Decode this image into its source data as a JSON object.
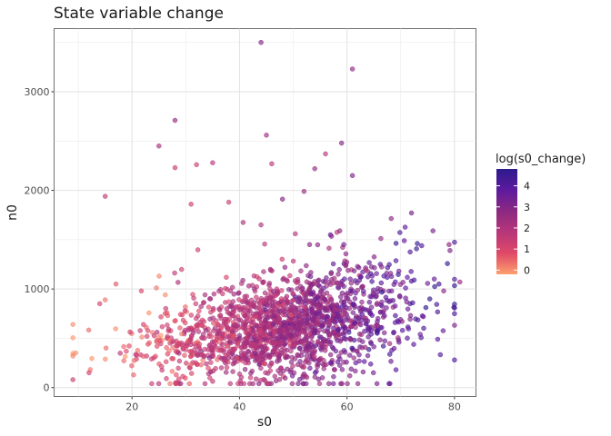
{
  "chart_data": {
    "type": "scatter",
    "title": "State variable change",
    "xlabel": "s0",
    "ylabel": "n0",
    "xlim": [
      5.5,
      84
    ],
    "ylim": [
      -90,
      3640
    ],
    "x_ticks": [
      20,
      40,
      60,
      80
    ],
    "y_ticks": [
      0,
      1000,
      2000,
      3000
    ],
    "grid": true,
    "point_alpha": 0.65,
    "color_scale": {
      "variable": "log(s0_change)",
      "min": -0.2,
      "max": 4.8,
      "ticks": [
        0,
        1,
        2,
        3,
        4
      ],
      "colors": [
        "#fe9f6d",
        "#de4968",
        "#b7367a",
        "#8c2981",
        "#5d1a9e",
        "#2d1a8c"
      ],
      "legend_placement": "right"
    },
    "notes_outliers": [
      {
        "x": 44,
        "y": 3500,
        "c": 3.0
      },
      {
        "x": 61,
        "y": 3230,
        "c": 2.7
      },
      {
        "x": 28,
        "y": 2710,
        "c": 2.6
      },
      {
        "x": 45,
        "y": 2560,
        "c": 2.4
      },
      {
        "x": 59,
        "y": 2480,
        "c": 3.0
      },
      {
        "x": 25,
        "y": 2450,
        "c": 2.2
      },
      {
        "x": 56,
        "y": 2370,
        "c": 1.8
      },
      {
        "x": 35,
        "y": 2280,
        "c": 1.9
      },
      {
        "x": 32,
        "y": 2260,
        "c": 1.4
      },
      {
        "x": 46,
        "y": 2270,
        "c": 1.7
      },
      {
        "x": 28,
        "y": 2230,
        "c": 1.5
      },
      {
        "x": 54,
        "y": 2220,
        "c": 2.6
      },
      {
        "x": 61,
        "y": 2150,
        "c": 3.1
      },
      {
        "x": 15,
        "y": 1940,
        "c": 1.6
      },
      {
        "x": 52,
        "y": 1990,
        "c": 2.5
      },
      {
        "x": 31,
        "y": 1860,
        "c": 1.2
      },
      {
        "x": 38,
        "y": 1880,
        "c": 1.3
      },
      {
        "x": 48,
        "y": 1910,
        "c": 2.9
      },
      {
        "x": 44,
        "y": 1650,
        "c": 2.1
      },
      {
        "x": 72,
        "y": 1770,
        "c": 3.3
      },
      {
        "x": 76,
        "y": 1590,
        "c": 3.2
      },
      {
        "x": 79,
        "y": 1450,
        "c": 2.8
      },
      {
        "x": 81,
        "y": 1070,
        "c": 2.6
      },
      {
        "x": 78,
        "y": 980,
        "c": 2.9
      },
      {
        "x": 9,
        "y": 320,
        "c": 0.1
      },
      {
        "x": 9,
        "y": 80,
        "c": 1.4
      },
      {
        "x": 12,
        "y": 150,
        "c": 1.1
      },
      {
        "x": 17,
        "y": 1050,
        "c": 0.6
      },
      {
        "x": 14,
        "y": 850,
        "c": 1.0
      },
      {
        "x": 15,
        "y": 890,
        "c": 0.3
      }
    ],
    "notes_distribution": "≈1800 points; dense band from s0≈12–78, n0≈150–1300, center trends upward (s0 20→~400, s0 60→~700); color increases with s0 (orange at low s0, deep purple at high s0)."
  }
}
